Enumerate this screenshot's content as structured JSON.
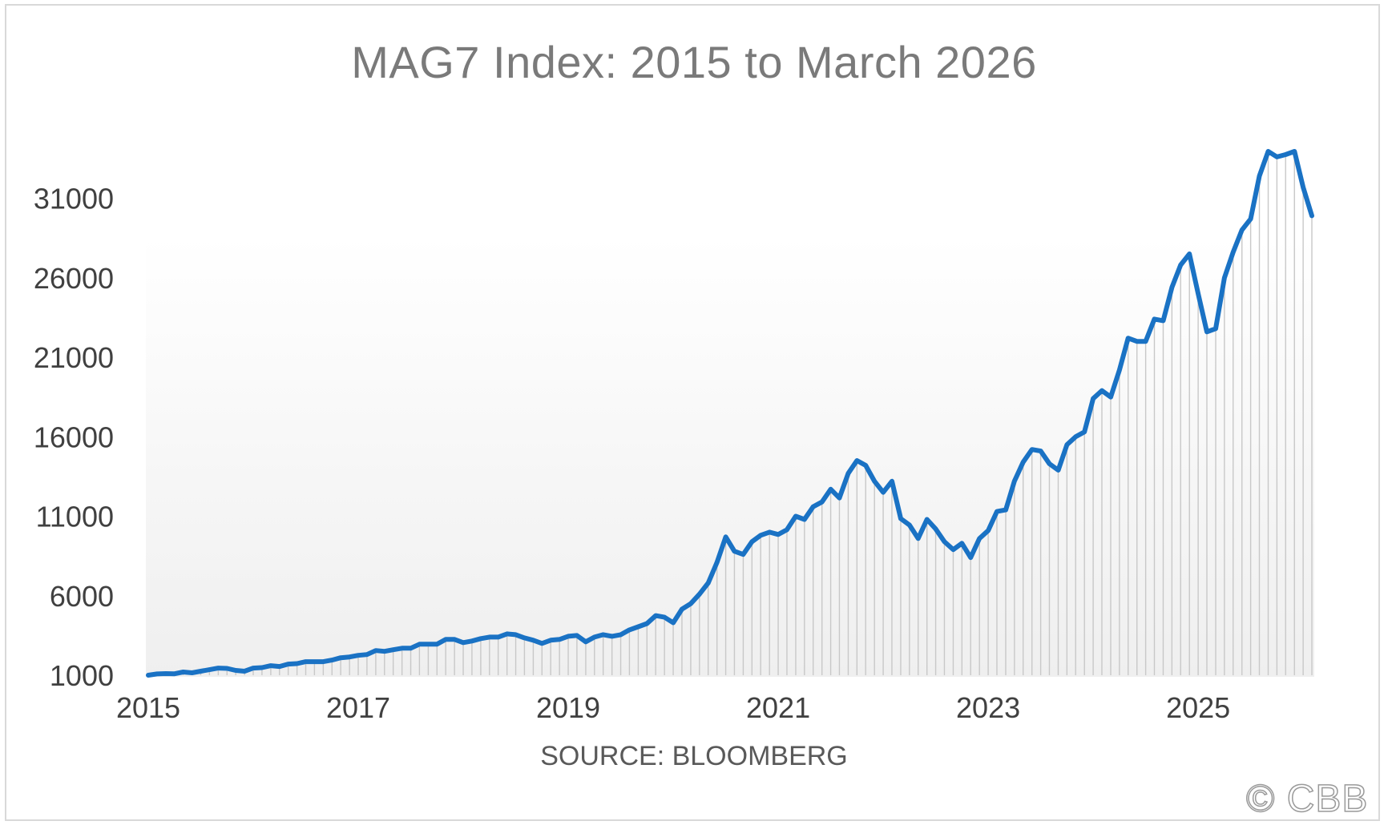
{
  "watermark": "© CBB",
  "chart_data": {
    "type": "line",
    "title": "MAG7 Index: 2015 to March 2026",
    "xlabel": "SOURCE: BLOOMBERG",
    "ylabel": "",
    "x_ticks": [
      "2015",
      "2017",
      "2019",
      "2021",
      "2023",
      "2025"
    ],
    "y_ticks": [
      1000,
      6000,
      11000,
      16000,
      21000,
      26000,
      31000
    ],
    "ylim": [
      1000,
      34000
    ],
    "xlim": [
      2015.0,
      2026.083
    ],
    "grid": false,
    "legend": "none",
    "line_color": "#1a72c4",
    "fill": "vertical hatch under line",
    "series": [
      {
        "x": [
          2015.0,
          2015.083,
          2015.167,
          2015.25,
          2015.333,
          2015.417,
          2015.5,
          2015.583,
          2015.667,
          2015.75,
          2015.833,
          2015.917,
          2016.0,
          2016.083,
          2016.167,
          2016.25,
          2016.333,
          2016.417,
          2016.5,
          2016.583,
          2016.667,
          2016.75,
          2016.833,
          2016.917,
          2017.0,
          2017.083,
          2017.167,
          2017.25,
          2017.333,
          2017.417,
          2017.5,
          2017.583,
          2017.667,
          2017.75,
          2017.833,
          2017.917,
          2018.0,
          2018.083,
          2018.167,
          2018.25,
          2018.333,
          2018.417,
          2018.5,
          2018.583,
          2018.667,
          2018.75,
          2018.833,
          2018.917,
          2019.0,
          2019.083,
          2019.167,
          2019.25,
          2019.333,
          2019.417,
          2019.5,
          2019.583,
          2019.667,
          2019.75,
          2019.833,
          2019.917,
          2020.0,
          2020.083,
          2020.167,
          2020.25,
          2020.333,
          2020.417,
          2020.5,
          2020.583,
          2020.667,
          2020.75,
          2020.833,
          2020.917,
          2021.0,
          2021.083,
          2021.167,
          2021.25,
          2021.333,
          2021.417,
          2021.5,
          2021.583,
          2021.667,
          2021.75,
          2021.833,
          2021.917,
          2022.0,
          2022.083,
          2022.167,
          2022.25,
          2022.333,
          2022.417,
          2022.5,
          2022.583,
          2022.667,
          2022.75,
          2022.833,
          2022.917,
          2023.0,
          2023.083,
          2023.167,
          2023.25,
          2023.333,
          2023.417,
          2023.5,
          2023.583,
          2023.667,
          2023.75,
          2023.833,
          2023.917,
          2024.0,
          2024.083,
          2024.167,
          2024.25,
          2024.333,
          2024.417,
          2024.5,
          2024.583,
          2024.667,
          2024.75,
          2024.833,
          2024.917,
          2025.0,
          2025.083,
          2025.167,
          2025.25,
          2025.333,
          2025.417,
          2025.5,
          2025.583,
          2025.667,
          2025.75,
          2025.833,
          2025.917,
          2026.0,
          2026.083
        ],
        "values": [
          1000,
          1080,
          1100,
          1090,
          1200,
          1150,
          1250,
          1350,
          1450,
          1430,
          1300,
          1250,
          1450,
          1480,
          1600,
          1550,
          1700,
          1730,
          1850,
          1850,
          1850,
          1950,
          2100,
          2150,
          2250,
          2300,
          2550,
          2500,
          2600,
          2700,
          2700,
          2950,
          2950,
          2950,
          3250,
          3250,
          3050,
          3150,
          3300,
          3400,
          3400,
          3600,
          3550,
          3350,
          3200,
          3000,
          3200,
          3250,
          3450,
          3500,
          3100,
          3400,
          3550,
          3450,
          3550,
          3850,
          4050,
          4250,
          4750,
          4650,
          4300,
          5150,
          5500,
          6100,
          6800,
          8100,
          9700,
          8800,
          8600,
          9400,
          9800,
          10000,
          9850,
          10150,
          11000,
          10800,
          11600,
          11900,
          12700,
          12150,
          13700,
          14500,
          14200,
          13200,
          12500,
          13200,
          10850,
          10450,
          9600,
          10800,
          10200,
          9400,
          8900,
          9300,
          8400,
          9600,
          10100,
          11300,
          11400,
          13200,
          14400,
          15200,
          15100,
          14300,
          13900,
          15500,
          16000,
          16300,
          18400,
          18900,
          18500,
          20200,
          22200,
          22000,
          22000,
          23400,
          23300,
          25400,
          26800,
          27500,
          25000,
          22600,
          22800,
          26000,
          27600,
          29000,
          29700,
          32400,
          33950,
          33600,
          33750,
          33950,
          31700,
          29900
        ]
      }
    ]
  }
}
